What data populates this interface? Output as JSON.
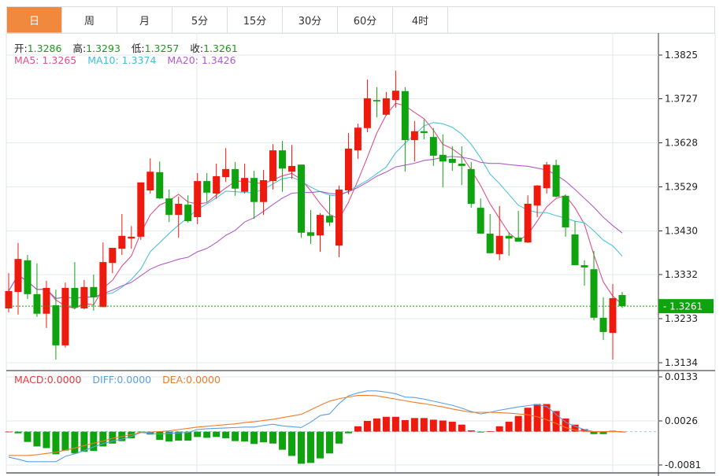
{
  "tabs": [
    {
      "label": "日",
      "active": true
    },
    {
      "label": "周"
    },
    {
      "label": "月"
    },
    {
      "label": "5分"
    },
    {
      "label": "15分"
    },
    {
      "label": "30分"
    },
    {
      "label": "60分"
    },
    {
      "label": "4时"
    }
  ],
  "ohlc_legend": {
    "open_label": "开:",
    "open": "1.3286",
    "high_label": "高:",
    "high": "1.3293",
    "low_label": "低:",
    "low": "1.3257",
    "close_label": "收:",
    "close": "1.3261"
  },
  "ma_legend": {
    "ma5_label": "MA5:",
    "ma5": "1.3265",
    "ma10_label": "MA10:",
    "ma10": "1.3374",
    "ma20_label": "MA20:",
    "ma20": "1.3426"
  },
  "macd_legend": {
    "macd_label": "MACD:",
    "macd": "0.0000",
    "diff_label": "DIFF:",
    "diff": "0.0000",
    "dea_label": "DEA:",
    "dea": "0.0000"
  },
  "current_price": "1.3261",
  "colors": {
    "up": "#ee1a0e",
    "down": "#10a310",
    "ma5": "#e0508a",
    "ma10": "#4fc3d8",
    "ma20": "#b05cc8",
    "diff": "#5aa0e0",
    "dea": "#f07b2a",
    "accent": "#f0883e"
  },
  "chart_data": [
    {
      "type": "candlestick",
      "y_ticks": [
        "1.3825",
        "1.3727",
        "1.3628",
        "1.3529",
        "1.3430",
        "1.3332",
        "1.3233",
        "1.3134"
      ],
      "ylim": [
        1.3134,
        1.3825
      ],
      "grid": true,
      "moving_averages": [
        5,
        10,
        20
      ],
      "candles": [
        [
          1.3256,
          1.3335,
          1.3247,
          1.3295
        ],
        [
          1.3293,
          1.3403,
          1.3242,
          1.3367
        ],
        [
          1.3364,
          1.3376,
          1.3277,
          1.3288
        ],
        [
          1.3288,
          1.3357,
          1.3237,
          1.3244
        ],
        [
          1.3244,
          1.3318,
          1.3212,
          1.3302
        ],
        [
          1.3263,
          1.3298,
          1.3141,
          1.3173
        ],
        [
          1.3173,
          1.3314,
          1.3168,
          1.3302
        ],
        [
          1.3302,
          1.336,
          1.3254,
          1.3258
        ],
        [
          1.3256,
          1.332,
          1.3254,
          1.3304
        ],
        [
          1.3304,
          1.3332,
          1.3251,
          1.3281
        ],
        [
          1.3259,
          1.3404,
          1.3259,
          1.336
        ],
        [
          1.3358,
          1.3392,
          1.3335,
          1.3392
        ],
        [
          1.339,
          1.3468,
          1.3376,
          1.3419
        ],
        [
          1.3413,
          1.3441,
          1.339,
          1.3417
        ],
        [
          1.3417,
          1.3539,
          1.341,
          1.3539
        ],
        [
          1.3521,
          1.3593,
          1.3514,
          1.3563
        ],
        [
          1.3562,
          1.3586,
          1.3502,
          1.3503
        ],
        [
          1.3503,
          1.3523,
          1.345,
          1.3466
        ],
        [
          1.3466,
          1.3507,
          1.3415,
          1.3491
        ],
        [
          1.3489,
          1.351,
          1.3449,
          1.3452
        ],
        [
          1.3461,
          1.356,
          1.3445,
          1.3542
        ],
        [
          1.3542,
          1.356,
          1.3495,
          1.3516
        ],
        [
          1.3514,
          1.3581,
          1.3502,
          1.3553
        ],
        [
          1.3551,
          1.3616,
          1.354,
          1.3569
        ],
        [
          1.3569,
          1.3585,
          1.3509,
          1.3525
        ],
        [
          1.3518,
          1.3581,
          1.3514,
          1.3549
        ],
        [
          1.3549,
          1.3565,
          1.3457,
          1.3495
        ],
        [
          1.3495,
          1.3567,
          1.3466,
          1.3544
        ],
        [
          1.3542,
          1.3625,
          1.3523,
          1.3611
        ],
        [
          1.3611,
          1.3632,
          1.3518,
          1.357
        ],
        [
          1.3563,
          1.3623,
          1.3547,
          1.3576
        ],
        [
          1.3579,
          1.3579,
          1.3415,
          1.3426
        ],
        [
          1.3427,
          1.3477,
          1.3401,
          1.3419
        ],
        [
          1.342,
          1.347,
          1.3383,
          1.3466
        ],
        [
          1.3464,
          1.351,
          1.3441,
          1.3449
        ],
        [
          1.3397,
          1.3532,
          1.3371,
          1.3523
        ],
        [
          1.3521,
          1.365,
          1.3512,
          1.3615
        ],
        [
          1.3611,
          1.3671,
          1.3592,
          1.3662
        ],
        [
          1.3661,
          1.377,
          1.3652,
          1.3728
        ],
        [
          1.3724,
          1.3753,
          1.3685,
          1.3721
        ],
        [
          1.3691,
          1.3742,
          1.3689,
          1.3728
        ],
        [
          1.3724,
          1.379,
          1.3707,
          1.3745
        ],
        [
          1.3744,
          1.3753,
          1.3563,
          1.3634
        ],
        [
          1.3634,
          1.3677,
          1.3586,
          1.3654
        ],
        [
          1.3654,
          1.368,
          1.3636,
          1.365
        ],
        [
          1.3641,
          1.3661,
          1.3576,
          1.3599
        ],
        [
          1.3601,
          1.3647,
          1.3528,
          1.3586
        ],
        [
          1.3592,
          1.362,
          1.3565,
          1.3583
        ],
        [
          1.3581,
          1.362,
          1.3533,
          1.3576
        ],
        [
          1.3569,
          1.3585,
          1.3482,
          1.3491
        ],
        [
          1.3482,
          1.3503,
          1.3424,
          1.3424
        ],
        [
          1.3424,
          1.3468,
          1.338,
          1.338
        ],
        [
          1.3378,
          1.3486,
          1.3364,
          1.3419
        ],
        [
          1.3419,
          1.3427,
          1.3374,
          1.3413
        ],
        [
          1.3415,
          1.3475,
          1.3406,
          1.3406
        ],
        [
          1.3404,
          1.351,
          1.3403,
          1.3491
        ],
        [
          1.3487,
          1.3533,
          1.3461,
          1.3532
        ],
        [
          1.3526,
          1.3585,
          1.3514,
          1.3579
        ],
        [
          1.3578,
          1.359,
          1.3505,
          1.3507
        ],
        [
          1.3509,
          1.3512,
          1.3417,
          1.3438
        ],
        [
          1.3422,
          1.3452,
          1.3353,
          1.3353
        ],
        [
          1.3353,
          1.3364,
          1.3307,
          1.3348
        ],
        [
          1.3344,
          1.3385,
          1.3229,
          1.3235
        ],
        [
          1.3235,
          1.3281,
          1.3185,
          1.3203
        ],
        [
          1.3201,
          1.3311,
          1.3141,
          1.3279
        ],
        [
          1.3286,
          1.3293,
          1.3257,
          1.3261
        ]
      ]
    },
    {
      "type": "bar+line",
      "y_ticks": [
        "0.0133",
        "0.0026",
        "-0.0081"
      ],
      "ylim": [
        -0.0081,
        0.0133
      ],
      "macd": [
        0,
        -0.0004,
        -0.0025,
        -0.0036,
        -0.004,
        -0.0055,
        -0.0046,
        -0.0053,
        -0.0049,
        -0.0047,
        -0.0036,
        -0.0029,
        -0.0023,
        -0.0016,
        -0.0001,
        -0.0007,
        -0.002,
        -0.0024,
        -0.0022,
        -0.0022,
        -0.0013,
        -0.0015,
        -0.0013,
        -0.0016,
        -0.0023,
        -0.0024,
        -0.003,
        -0.0026,
        -0.0029,
        -0.0044,
        -0.0059,
        -0.0078,
        -0.0076,
        -0.0065,
        -0.0053,
        -0.0029,
        -0.0004,
        0.0013,
        0.0026,
        0.0032,
        0.0036,
        0.0036,
        0.0028,
        0.0033,
        0.0033,
        0.0029,
        0.0027,
        0.0024,
        0.0017,
        0.0003,
        -0.0002,
        0.0001,
        0.0013,
        0.0024,
        0.0038,
        0.0058,
        0.0067,
        0.0067,
        0.005,
        0.0032,
        0.0017,
        0.0006,
        -0.0006,
        -0.0006,
        0.0002,
        0
      ],
      "diff": [
        -0.0062,
        -0.0067,
        -0.0073,
        -0.0073,
        -0.0073,
        -0.0073,
        -0.006,
        -0.0054,
        -0.0046,
        -0.0037,
        -0.0029,
        -0.0023,
        -0.0018,
        -0.0012,
        -0.0002,
        -0.0004,
        -0.0006,
        -0.0004,
        -0.0003,
        -0.0002,
        0.0005,
        0.0007,
        0.0008,
        0.0009,
        0.001,
        0.0011,
        0.0011,
        0.0015,
        0.0018,
        0.0014,
        0.0012,
        0.001,
        0.0023,
        0.0039,
        0.0043,
        0.0068,
        0.0087,
        0.0094,
        0.0099,
        0.0099,
        0.0096,
        0.0092,
        0.0084,
        0.0083,
        0.0079,
        0.0074,
        0.0069,
        0.0064,
        0.0057,
        0.0049,
        0.0043,
        0.0047,
        0.0052,
        0.0056,
        0.006,
        0.0063,
        0.0066,
        0.0061,
        0.0042,
        0.0023,
        0.0013,
        0.0005,
        0,
        0,
        0,
        0
      ],
      "dea": [
        -0.0058,
        -0.0058,
        -0.0058,
        -0.0056,
        -0.0053,
        -0.005,
        -0.0045,
        -0.004,
        -0.0034,
        -0.0028,
        -0.0023,
        -0.0016,
        -0.0012,
        -0.0007,
        -0.0002,
        -0.0001,
        0,
        0.0002,
        0.0005,
        0.0008,
        0.0011,
        0.0013,
        0.0015,
        0.0017,
        0.0019,
        0.0022,
        0.0024,
        0.0027,
        0.003,
        0.0034,
        0.0038,
        0.0042,
        0.0053,
        0.0064,
        0.0074,
        0.008,
        0.0084,
        0.0088,
        0.0088,
        0.0087,
        0.0083,
        0.0079,
        0.0075,
        0.0071,
        0.0068,
        0.0064,
        0.006,
        0.0055,
        0.0051,
        0.0047,
        0.0047,
        0.0047,
        0.0046,
        0.0045,
        0.0043,
        0.0041,
        0.0036,
        0.0029,
        0.002,
        0.001,
        0.0004,
        0.0001,
        0,
        0,
        0,
        0
      ]
    }
  ]
}
